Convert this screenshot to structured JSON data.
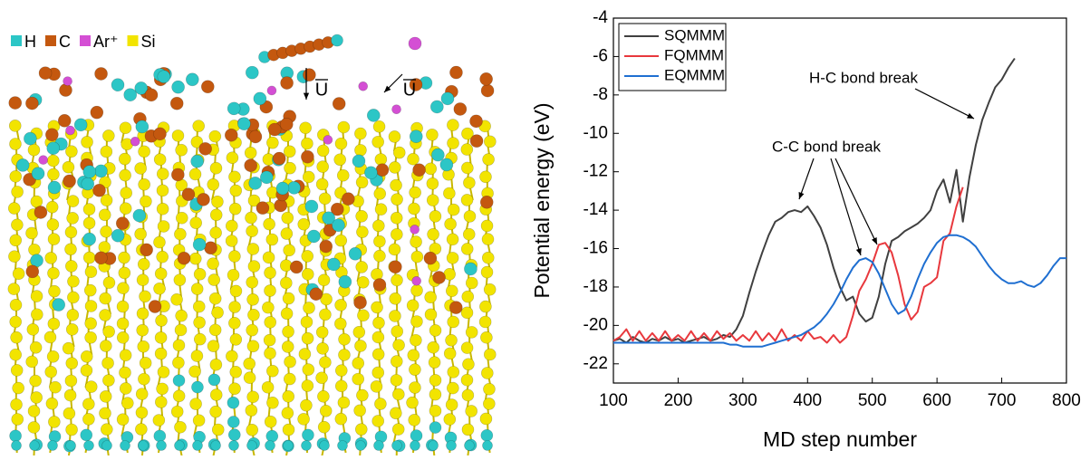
{
  "simulation_image": {
    "legend": [
      "H",
      "C",
      "Ar⁺",
      "Si"
    ],
    "velocity_labels": [
      "U",
      "U"
    ]
  },
  "chart_data": {
    "type": "line",
    "x_label": "MD step number",
    "y_label": "Potential energy (eV)",
    "xlim": [
      100,
      800
    ],
    "xticks": [
      100,
      200,
      300,
      400,
      500,
      600,
      700,
      800
    ],
    "ylim": [
      -23,
      -4
    ],
    "yticks": [
      -22,
      -20,
      -18,
      -16,
      -14,
      -12,
      -10,
      -8,
      -6,
      -4
    ],
    "legend": "top-left",
    "x": [
      100,
      110,
      120,
      130,
      140,
      150,
      160,
      170,
      180,
      190,
      200,
      210,
      220,
      230,
      240,
      250,
      260,
      270,
      280,
      290,
      300,
      310,
      320,
      330,
      340,
      350,
      360,
      370,
      380,
      390,
      400,
      410,
      420,
      430,
      440,
      450,
      460,
      470,
      480,
      490,
      500,
      510,
      520,
      530,
      540,
      550,
      560,
      570,
      580,
      590,
      600,
      610,
      620,
      630,
      640,
      650,
      660,
      670,
      680,
      690,
      700,
      710,
      720,
      730,
      740,
      750,
      760,
      770,
      780,
      790,
      800
    ],
    "series": [
      {
        "name": "SQMMM",
        "color": "#404040",
        "values": [
          -20.8,
          -20.7,
          -20.9,
          -20.6,
          -20.8,
          -20.9,
          -20.7,
          -20.8,
          -20.6,
          -20.8,
          -20.7,
          -20.9,
          -20.8,
          -20.7,
          -20.6,
          -20.8,
          -20.7,
          -20.5,
          -20.6,
          -20.2,
          -19.5,
          -18.3,
          -17.2,
          -16.2,
          -15.3,
          -14.6,
          -14.4,
          -14.1,
          -14,
          -14.1,
          -13.8,
          -14.3,
          -14.9,
          -15.8,
          -17,
          -18,
          -18.7,
          -18.5,
          -19.4,
          -19.8,
          -19.6,
          -18.5,
          -16.8,
          -15.6,
          -15.4,
          -15.1,
          -14.9,
          -14.7,
          -14.4,
          -14,
          -13,
          -12.4,
          -13.6,
          -11.9,
          -14.6,
          -12.3,
          -10.6,
          -9.3,
          -8.4,
          -7.6,
          -7.2,
          -6.6,
          -6.1,
          null,
          null,
          null,
          null,
          null,
          null,
          null,
          null
        ]
      },
      {
        "name": "FQMMM",
        "color": "#e8383d",
        "values": [
          -20.8,
          -20.6,
          -20.2,
          -20.8,
          -20.3,
          -20.8,
          -20.4,
          -20.8,
          -20.3,
          -20.8,
          -20.5,
          -20.8,
          -20.3,
          -20.8,
          -20.4,
          -20.8,
          -20.3,
          -20.7,
          -20.4,
          -20.8,
          -20.5,
          -20.8,
          -20.3,
          -20.8,
          -20.4,
          -20.8,
          -20.2,
          -20.8,
          -20.5,
          -20.8,
          -20.3,
          -20.7,
          -20.6,
          -20.9,
          -20.5,
          -20.9,
          -20.6,
          -19.5,
          -18.2,
          -17.6,
          -16.8,
          -15.8,
          -15.7,
          -16.2,
          -17.4,
          -18.9,
          -19.7,
          -19.3,
          -18,
          -17.8,
          -17.5,
          -15.6,
          -15.2,
          -13.8,
          -12.8,
          null,
          null,
          null,
          null,
          null,
          null,
          null,
          null,
          null,
          null,
          null,
          null,
          null,
          null,
          null,
          null
        ]
      },
      {
        "name": "EQMMM",
        "color": "#1f6fd1",
        "values": [
          -20.9,
          -20.9,
          -20.9,
          -20.9,
          -20.9,
          -20.9,
          -20.9,
          -20.9,
          -20.9,
          -20.9,
          -20.9,
          -20.9,
          -20.9,
          -20.9,
          -20.9,
          -20.9,
          -20.9,
          -20.9,
          -21,
          -21,
          -21.1,
          -21.1,
          -21.1,
          -21.1,
          -21,
          -20.9,
          -20.8,
          -20.7,
          -20.6,
          -20.5,
          -20.3,
          -20.1,
          -19.8,
          -19.4,
          -18.9,
          -18.3,
          -17.6,
          -17,
          -16.6,
          -16.5,
          -16.7,
          -17.3,
          -18.1,
          -18.9,
          -19.4,
          -19.2,
          -18.5,
          -17.6,
          -16.8,
          -16.2,
          -15.7,
          -15.4,
          -15.3,
          -15.3,
          -15.4,
          -15.6,
          -15.9,
          -16.4,
          -16.9,
          -17.3,
          -17.6,
          -17.8,
          -17.8,
          -17.7,
          -17.9,
          -18,
          -17.8,
          -17.4,
          -16.9,
          -16.5,
          -16.5
        ]
      }
    ],
    "annotations": [
      "C-C bond break",
      "H-C bond break"
    ]
  }
}
